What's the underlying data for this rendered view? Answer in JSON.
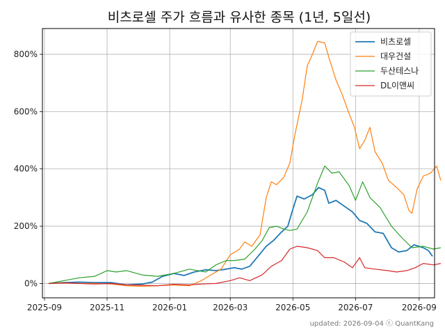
{
  "chart_data": {
    "type": "line",
    "title": "비츠로셀 주가 흐름과 유사한 종목 (1년, 5일선)",
    "footer": "updated: 2026-09-04 ⓒ QuantKang",
    "legend_position": "top-right",
    "grid": true,
    "x_ticks": [
      "2025-09",
      "2025-11",
      "2026-01",
      "2026-03",
      "2026-05",
      "2026-07",
      "2026-09"
    ],
    "y_ticks": [
      0,
      200,
      400,
      600,
      800
    ],
    "y_tick_labels": [
      "0%",
      "200%",
      "400%",
      "600%",
      "800%"
    ],
    "xlim": [
      "2025-08-30",
      "2026-09-16"
    ],
    "ylim": [
      -50,
      890
    ],
    "series": [
      {
        "name": "비츠로셀",
        "color": "#1f77b4",
        "points": [
          [
            "2025-09-05",
            0
          ],
          [
            "2025-09-20",
            3
          ],
          [
            "2025-10-05",
            5
          ],
          [
            "2025-10-20",
            3
          ],
          [
            "2025-11-05",
            3
          ],
          [
            "2025-11-20",
            -5
          ],
          [
            "2025-12-05",
            -2
          ],
          [
            "2025-12-15",
            5
          ],
          [
            "2025-12-25",
            25
          ],
          [
            "2026-01-05",
            35
          ],
          [
            "2026-01-15",
            28
          ],
          [
            "2026-01-25",
            40
          ],
          [
            "2026-02-05",
            48
          ],
          [
            "2026-02-15",
            45
          ],
          [
            "2026-02-25",
            50
          ],
          [
            "2026-03-05",
            55
          ],
          [
            "2026-03-12",
            50
          ],
          [
            "2026-03-20",
            60
          ],
          [
            "2026-03-28",
            95
          ],
          [
            "2026-04-05",
            130
          ],
          [
            "2026-04-12",
            150
          ],
          [
            "2026-04-20",
            180
          ],
          [
            "2026-04-26",
            200
          ],
          [
            "2026-05-01",
            260
          ],
          [
            "2026-05-05",
            305
          ],
          [
            "2026-05-12",
            295
          ],
          [
            "2026-05-20",
            310
          ],
          [
            "2026-05-26",
            335
          ],
          [
            "2026-06-01",
            325
          ],
          [
            "2026-06-05",
            280
          ],
          [
            "2026-06-12",
            290
          ],
          [
            "2026-06-20",
            270
          ],
          [
            "2026-06-28",
            250
          ],
          [
            "2026-07-05",
            220
          ],
          [
            "2026-07-12",
            210
          ],
          [
            "2026-07-20",
            180
          ],
          [
            "2026-07-28",
            175
          ],
          [
            "2026-08-05",
            125
          ],
          [
            "2026-08-12",
            110
          ],
          [
            "2026-08-20",
            115
          ],
          [
            "2026-08-27",
            135
          ],
          [
            "2026-09-05",
            125
          ],
          [
            "2026-09-10",
            115
          ],
          [
            "2026-09-14",
            95
          ]
        ]
      },
      {
        "name": "대우건설",
        "color": "#ff7f0e",
        "points": [
          [
            "2025-09-05",
            0
          ],
          [
            "2025-09-20",
            2
          ],
          [
            "2025-10-05",
            0
          ],
          [
            "2025-10-20",
            0
          ],
          [
            "2025-11-05",
            -2
          ],
          [
            "2025-11-20",
            -8
          ],
          [
            "2025-12-05",
            -10
          ],
          [
            "2025-12-20",
            -8
          ],
          [
            "2026-01-05",
            -5
          ],
          [
            "2026-01-20",
            -8
          ],
          [
            "2026-02-01",
            10
          ],
          [
            "2026-02-10",
            30
          ],
          [
            "2026-02-20",
            50
          ],
          [
            "2026-03-01",
            100
          ],
          [
            "2026-03-10",
            120
          ],
          [
            "2026-03-15",
            145
          ],
          [
            "2026-03-22",
            130
          ],
          [
            "2026-03-30",
            170
          ],
          [
            "2026-04-05",
            300
          ],
          [
            "2026-04-10",
            355
          ],
          [
            "2026-04-15",
            345
          ],
          [
            "2026-04-22",
            370
          ],
          [
            "2026-04-28",
            420
          ],
          [
            "2026-05-03",
            520
          ],
          [
            "2026-05-10",
            640
          ],
          [
            "2026-05-15",
            760
          ],
          [
            "2026-05-20",
            800
          ],
          [
            "2026-05-25",
            845
          ],
          [
            "2026-06-01",
            840
          ],
          [
            "2026-06-05",
            790
          ],
          [
            "2026-06-12",
            710
          ],
          [
            "2026-06-18",
            660
          ],
          [
            "2026-06-24",
            600
          ],
          [
            "2026-06-30",
            545
          ],
          [
            "2026-07-05",
            470
          ],
          [
            "2026-07-10",
            500
          ],
          [
            "2026-07-15",
            545
          ],
          [
            "2026-07-20",
            460
          ],
          [
            "2026-07-27",
            420
          ],
          [
            "2026-08-02",
            360
          ],
          [
            "2026-08-10",
            335
          ],
          [
            "2026-08-17",
            310
          ],
          [
            "2026-08-22",
            255
          ],
          [
            "2026-08-25",
            245
          ],
          [
            "2026-08-30",
            330
          ],
          [
            "2026-09-05",
            375
          ],
          [
            "2026-09-12",
            385
          ],
          [
            "2026-09-18",
            410
          ],
          [
            "2026-09-22",
            360
          ]
        ]
      },
      {
        "name": "두산테스나",
        "color": "#2ca02c",
        "points": [
          [
            "2025-09-05",
            0
          ],
          [
            "2025-09-20",
            10
          ],
          [
            "2025-10-05",
            20
          ],
          [
            "2025-10-20",
            25
          ],
          [
            "2025-11-01",
            45
          ],
          [
            "2025-11-10",
            40
          ],
          [
            "2025-11-20",
            45
          ],
          [
            "2025-12-05",
            30
          ],
          [
            "2025-12-20",
            25
          ],
          [
            "2026-01-05",
            35
          ],
          [
            "2026-01-20",
            50
          ],
          [
            "2026-02-05",
            40
          ],
          [
            "2026-02-15",
            65
          ],
          [
            "2026-02-25",
            80
          ],
          [
            "2026-03-05",
            80
          ],
          [
            "2026-03-15",
            85
          ],
          [
            "2026-03-25",
            120
          ],
          [
            "2026-04-01",
            150
          ],
          [
            "2026-04-08",
            195
          ],
          [
            "2026-04-15",
            200
          ],
          [
            "2026-04-22",
            190
          ],
          [
            "2026-04-28",
            185
          ],
          [
            "2026-05-05",
            190
          ],
          [
            "2026-05-15",
            250
          ],
          [
            "2026-05-25",
            350
          ],
          [
            "2026-06-01",
            410
          ],
          [
            "2026-06-08",
            385
          ],
          [
            "2026-06-15",
            390
          ],
          [
            "2026-06-25",
            340
          ],
          [
            "2026-07-01",
            290
          ],
          [
            "2026-07-08",
            355
          ],
          [
            "2026-07-15",
            300
          ],
          [
            "2026-07-25",
            265
          ],
          [
            "2026-08-05",
            200
          ],
          [
            "2026-08-15",
            160
          ],
          [
            "2026-08-25",
            125
          ],
          [
            "2026-09-05",
            130
          ],
          [
            "2026-09-15",
            120
          ],
          [
            "2026-09-22",
            125
          ]
        ]
      },
      {
        "name": "DL이앤씨",
        "color": "#d62728",
        "points": [
          [
            "2025-09-05",
            0
          ],
          [
            "2025-09-20",
            2
          ],
          [
            "2025-10-05",
            0
          ],
          [
            "2025-10-20",
            -2
          ],
          [
            "2025-11-05",
            0
          ],
          [
            "2025-11-20",
            -5
          ],
          [
            "2025-12-05",
            -6
          ],
          [
            "2025-12-20",
            -8
          ],
          [
            "2026-01-05",
            -3
          ],
          [
            "2026-01-20",
            -5
          ],
          [
            "2026-02-01",
            -2
          ],
          [
            "2026-02-15",
            0
          ],
          [
            "2026-03-01",
            10
          ],
          [
            "2026-03-10",
            20
          ],
          [
            "2026-03-20",
            10
          ],
          [
            "2026-04-01",
            30
          ],
          [
            "2026-04-10",
            60
          ],
          [
            "2026-04-20",
            80
          ],
          [
            "2026-04-28",
            120
          ],
          [
            "2026-05-05",
            130
          ],
          [
            "2026-05-15",
            125
          ],
          [
            "2026-05-25",
            115
          ],
          [
            "2026-06-01",
            90
          ],
          [
            "2026-06-10",
            90
          ],
          [
            "2026-06-20",
            75
          ],
          [
            "2026-06-28",
            55
          ],
          [
            "2026-07-05",
            90
          ],
          [
            "2026-07-10",
            55
          ],
          [
            "2026-07-20",
            50
          ],
          [
            "2026-08-01",
            45
          ],
          [
            "2026-08-10",
            40
          ],
          [
            "2026-08-20",
            45
          ],
          [
            "2026-08-28",
            55
          ],
          [
            "2026-09-05",
            70
          ],
          [
            "2026-09-15",
            65
          ],
          [
            "2026-09-22",
            70
          ]
        ]
      }
    ]
  }
}
